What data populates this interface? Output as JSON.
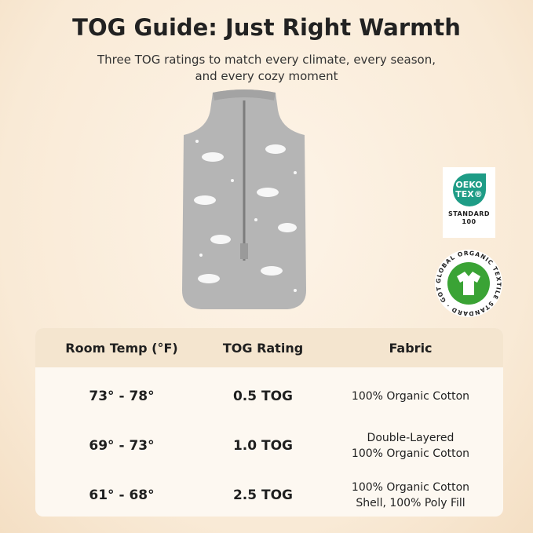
{
  "title": "TOG Guide: Just Right Warmth",
  "subtitle": "Three TOG ratings to match every climate, every season, and every cozy moment",
  "badges": {
    "oeko": {
      "line1": "OEKO",
      "line2": "TEX®",
      "standard": "STANDARD",
      "number": "100",
      "color": "#1e9c86"
    },
    "gots": {
      "ring_text": "GLOBAL ORGANIC TEXTILE STANDARD · GOTS ·",
      "color": "#3aa335"
    }
  },
  "table": {
    "headers": [
      "Room Temp (°F)",
      "TOG Rating",
      "Fabric"
    ],
    "rows": [
      {
        "temp": "73° - 78°",
        "tog": "0.5 TOG",
        "fabric": [
          "100% Organic Cotton"
        ]
      },
      {
        "temp": "69° - 73°",
        "tog": "1.0 TOG",
        "fabric": [
          "Double-Layered",
          "100% Organic Cotton"
        ]
      },
      {
        "temp": "61° - 68°",
        "tog": "2.5 TOG",
        "fabric": [
          "100% Organic Cotton",
          "Shell, 100% Poly Fill"
        ]
      }
    ]
  }
}
